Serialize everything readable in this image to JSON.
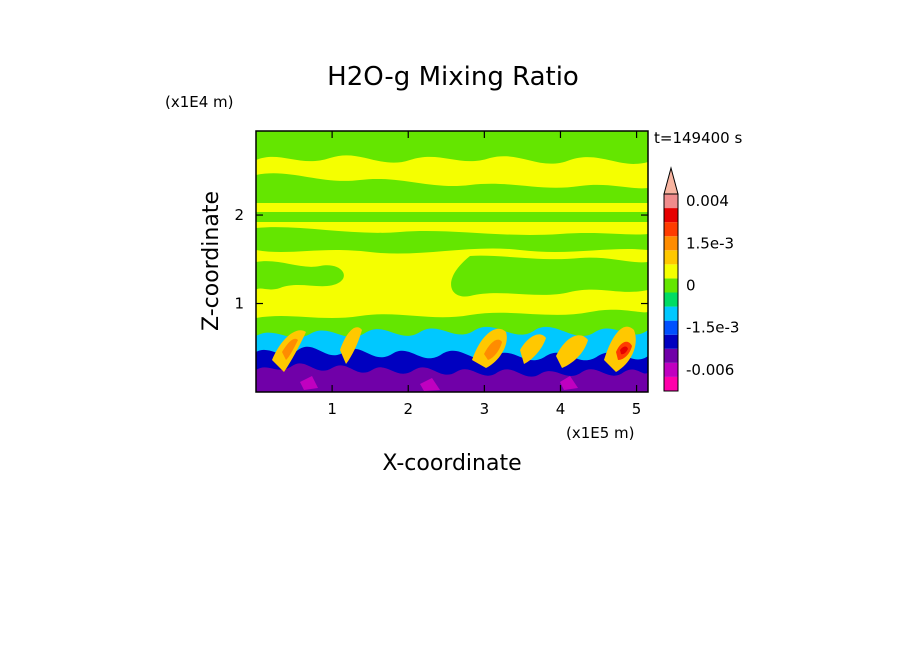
{
  "chart_data": {
    "type": "heatmap",
    "title": "H2O-g Mixing Ratio",
    "xlabel": "X-coordinate",
    "ylabel": "Z-coordinate",
    "x_unit": "(x1E5 m)",
    "y_unit": "(x1E4 m)",
    "time_label": "t=149400 s",
    "xlim": [
      0,
      5.15
    ],
    "ylim": [
      0,
      2.95
    ],
    "x_ticks": [
      1,
      2,
      3,
      4,
      5
    ],
    "y_ticks": [
      1,
      2
    ],
    "colorbar": {
      "levels": [
        -0.008,
        -0.006,
        -0.004,
        -0.002,
        -0.0015,
        -0.001,
        -0.0005,
        0,
        0.0005,
        0.001,
        0.0015,
        0.002,
        0.003,
        0.004
      ],
      "colors": [
        "#ff00aa",
        "#c000c0",
        "#7000a8",
        "#0000c0",
        "#0050ff",
        "#00c8ff",
        "#00dc64",
        "#64e600",
        "#f5ff00",
        "#ffc800",
        "#ff8c00",
        "#ff3c00",
        "#e60000",
        "#f08c8c",
        "#f8b4a0"
      ],
      "tick_labels": [
        {
          "value": 0.004,
          "label": "0.004"
        },
        {
          "value": 0.0015,
          "label": "1.5e-3"
        },
        {
          "value": 0,
          "label": "0"
        },
        {
          "value": -0.0015,
          "label": "-1.5e-3"
        },
        {
          "value": -0.006,
          "label": "-0.006"
        }
      ],
      "extend": "max"
    },
    "field_description_bands": [
      {
        "z_range": [
          0,
          0.2
        ],
        "dominant": -0.006
      },
      {
        "z_range": [
          0.2,
          0.45
        ],
        "dominant": -0.0015
      },
      {
        "z_range": [
          0.45,
          0.9
        ],
        "dominant": 0.0005
      },
      {
        "z_range": [
          0.9,
          1.7
        ],
        "dominant": 0.0003
      },
      {
        "z_range": [
          1.7,
          2.15
        ],
        "dominant": 0.0002
      },
      {
        "z_range": [
          2.15,
          2.95
        ],
        "dominant": 0.0003
      }
    ],
    "grid": false,
    "legend": "right colorbar"
  }
}
